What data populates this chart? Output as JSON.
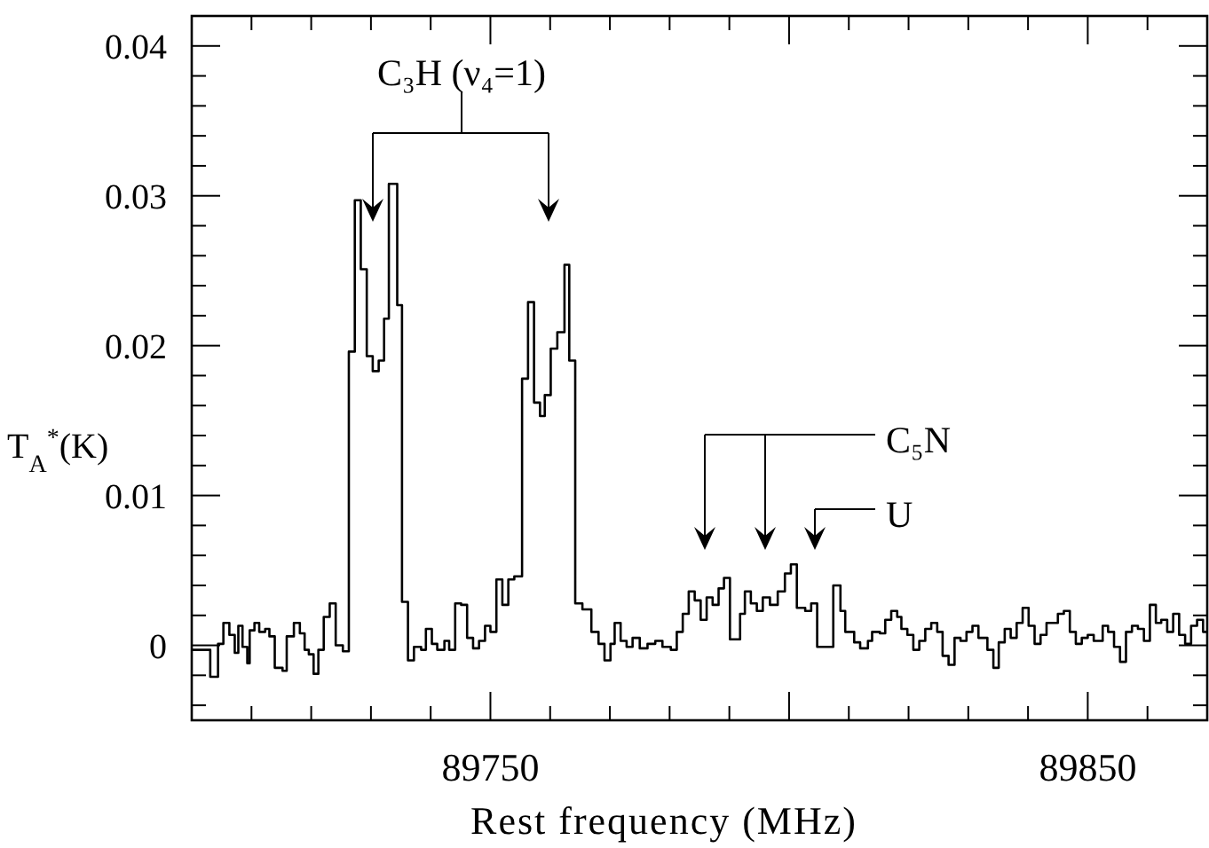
{
  "chart_data": {
    "type": "step",
    "xlabel": "Rest frequency (MHz)",
    "ylabel": "T$_{A}$$^{*}$(K)",
    "xlim": [
      89700,
      89870
    ],
    "ylim": [
      -0.005,
      0.042
    ],
    "xticks": [
      {
        "value": 89710,
        "label": null
      },
      {
        "value": 89720,
        "label": null
      },
      {
        "value": 89730,
        "label": null
      },
      {
        "value": 89740,
        "label": null
      },
      89750,
      {
        "value": 89760,
        "label": null
      },
      {
        "value": 89770,
        "label": null
      },
      {
        "value": 89780,
        "label": null
      },
      {
        "value": 89790,
        "label": null
      },
      {
        "value": 89800,
        "label": null
      },
      {
        "value": 89810,
        "label": null
      },
      {
        "value": 89820,
        "label": null
      },
      {
        "value": 89830,
        "label": null
      },
      {
        "value": 89840,
        "label": null
      },
      89850,
      {
        "value": 89860,
        "label": null
      }
    ],
    "yticks": [
      {
        "value": -0.004,
        "label": null
      },
      {
        "value": -0.002,
        "label": null
      },
      0,
      {
        "value": 0.002,
        "label": null
      },
      {
        "value": 0.004,
        "label": null
      },
      {
        "value": 0.006,
        "label": null
      },
      {
        "value": 0.008,
        "label": null
      },
      0.01,
      {
        "value": 0.012,
        "label": null
      },
      {
        "value": 0.014,
        "label": null
      },
      {
        "value": 0.016,
        "label": null
      },
      {
        "value": 0.018,
        "label": null
      },
      0.02,
      {
        "value": 0.022,
        "label": null
      },
      {
        "value": 0.024,
        "label": null
      },
      {
        "value": 0.026,
        "label": null
      },
      {
        "value": 0.028,
        "label": null
      },
      0.03,
      {
        "value": 0.032,
        "label": null
      },
      {
        "value": 0.034,
        "label": null
      },
      {
        "value": 0.036,
        "label": null
      },
      {
        "value": 0.038,
        "label": null
      },
      0.04
    ],
    "annotations": [
      "C₃H (ν₄=1)",
      "C₅N",
      "U"
    ],
    "series": [
      {
        "color": "#000000",
        "x": [
          89700.1,
          89703.1,
          89704.4,
          89705.3,
          89706.3,
          89707.2,
          89707.8,
          89708.5,
          89709.3,
          89709.7,
          89710.5,
          89711.3,
          89712.3,
          89713.0,
          89713.9,
          89715.2,
          89715.9,
          89717.1,
          89718.1,
          89718.9,
          89719.6,
          89720.4,
          89721.2,
          89722.1,
          89723.1,
          89724.1,
          89725.3,
          89726.3,
          89727.3,
          89728.3,
          89729.3,
          89730.3,
          89731.3,
          89732.2,
          89733.0,
          89734.4,
          89735.2,
          89736.2,
          89737.2,
          89738.4,
          89739.2,
          89740.2,
          89741.1,
          89742.3,
          89743.1,
          89744.1,
          89745.1,
          89746.1,
          89747.1,
          89748.1,
          89749.1,
          89750.0,
          89751.0,
          89752.0,
          89753.0,
          89754.0,
          89755.3,
          89756.3,
          89757.3,
          89758.3,
          89759.1,
          89760.1,
          89761.2,
          89762.4,
          89763.2,
          89764.2,
          89765.4,
          89766.9,
          89768.1,
          89769.1,
          89770.1,
          89770.8,
          89771.8,
          89772.8,
          89773.8,
          89775.0,
          89776.3,
          89777.6,
          89778.8,
          89780.2,
          89781.2,
          89782.2,
          89783.2,
          89784.2,
          89785.2,
          89786.2,
          89787.2,
          89788.2,
          89789.1,
          89790.1,
          89791.8,
          89792.6,
          89793.6,
          89794.6,
          89795.6,
          89796.8,
          89798.1,
          89799.3,
          89800.3,
          89801.3,
          89802.7,
          89803.7,
          89804.7,
          89807.4,
          89808.6,
          89809.4,
          89810.9,
          89811.9,
          89813.2,
          89813.9,
          89815.2,
          89816.1,
          89817.1,
          89818.1,
          89818.8,
          89819.8,
          89820.8,
          89821.8,
          89822.8,
          89823.8,
          89824.8,
          89825.7,
          89826.7,
          89827.7,
          89828.7,
          89829.7,
          89830.7,
          89831.7,
          89833.2,
          89834.2,
          89835.1,
          89836.1,
          89837.1,
          89838.1,
          89839.1,
          89840.1,
          89841.1,
          89842.1,
          89843.1,
          89845.0,
          89846.0,
          89847.0,
          89848.0,
          89849.0,
          89850.0,
          89851.0,
          89852.5,
          89853.4,
          89854.4,
          89855.4,
          89856.4,
          89857.4,
          89858.4,
          89859.4,
          89860.4,
          89861.4,
          89862.3,
          89863.3,
          89864.3,
          89865.3,
          89866.3,
          89867.3,
          89868.3,
          89869.3,
          89870
        ],
        "values": [
          -0.0003,
          -0.0021,
          0.0001,
          0.0015,
          0.0007,
          -0.0005,
          0.0013,
          -0.0001,
          -0.0012,
          0.001,
          0.0015,
          0.0009,
          0.0011,
          0.0006,
          -0.0015,
          -0.0017,
          0.0006,
          0.0015,
          0.0008,
          -0.0003,
          -0.0006,
          -0.0019,
          -0.0003,
          0.0019,
          0.0028,
          0.0,
          -0.0004,
          0.0196,
          0.0297,
          0.0251,
          0.0193,
          0.0183,
          0.019,
          0.0218,
          0.0308,
          0.0227,
          0.0029,
          -0.001,
          -0.0001,
          -0.0003,
          0.0011,
          0.0001,
          -0.0003,
          0.0003,
          -0.0003,
          0.0028,
          0.0027,
          0.0005,
          -0.0002,
          0.0003,
          0.0013,
          0.0009,
          0.0044,
          0.0027,
          0.0044,
          0.0046,
          0.0178,
          0.0229,
          0.0162,
          0.0153,
          0.0167,
          0.0198,
          0.0209,
          0.0254,
          0.019,
          0.0028,
          0.0024,
          0.0009,
          0.0001,
          -0.001,
          0.0001,
          0.0015,
          0.0003,
          -0.0001,
          0.0005,
          -0.0002,
          0.0001,
          0.0003,
          -0.0001,
          -0.0003,
          0.0009,
          0.0021,
          0.0036,
          0.003,
          0.0017,
          0.0032,
          0.0027,
          0.0038,
          0.0045,
          0.0004,
          0.0021,
          0.0036,
          0.0028,
          0.0023,
          0.0032,
          0.0027,
          0.0036,
          0.0048,
          0.0054,
          0.0025,
          0.0023,
          0.0028,
          -0.0001,
          0.004,
          0.0023,
          0.0009,
          0.0002,
          -0.0002,
          0.0003,
          0.0009,
          0.0008,
          0.0017,
          0.0023,
          0.0019,
          0.0011,
          0.0007,
          -0.0003,
          0.0003,
          0.0011,
          0.0015,
          0.0009,
          -0.0007,
          -0.0013,
          0.0005,
          0.0003,
          0.0009,
          0.0013,
          0.0005,
          -0.0003,
          -0.0015,
          0.0002,
          0.0011,
          0.0005,
          0.0015,
          0.0025,
          0.0013,
          0.0001,
          0.0007,
          0.0015,
          0.0021,
          0.0023,
          0.0009,
          0.0001,
          0.0005,
          0.0007,
          0.0003,
          0.0013,
          0.0009,
          -0.0001,
          -0.0011,
          0.0009,
          0.0013,
          0.0011,
          0.0003,
          0.0027,
          0.0015,
          0.0017,
          0.0009,
          0.0021,
          0.0007,
          0.0001,
          0.0013,
          0.0017,
          0.0009,
          0.0009
        ]
      }
    ]
  }
}
